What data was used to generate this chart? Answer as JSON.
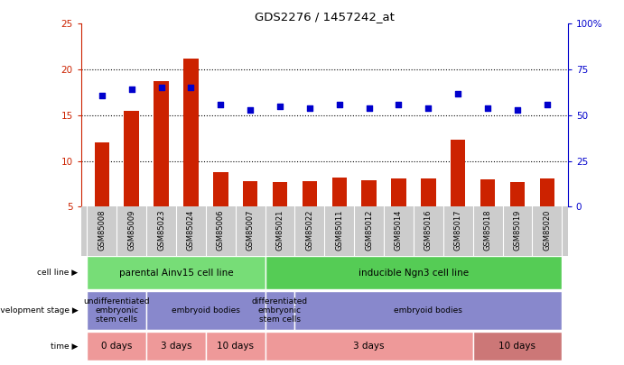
{
  "title": "GDS2276 / 1457242_at",
  "samples": [
    "GSM85008",
    "GSM85009",
    "GSM85023",
    "GSM85024",
    "GSM85006",
    "GSM85007",
    "GSM85021",
    "GSM85022",
    "GSM85011",
    "GSM85012",
    "GSM85014",
    "GSM85016",
    "GSM85017",
    "GSM85018",
    "GSM85019",
    "GSM85020"
  ],
  "counts": [
    12.0,
    15.5,
    18.7,
    21.2,
    8.8,
    7.8,
    7.7,
    7.8,
    8.2,
    7.9,
    8.1,
    8.1,
    12.3,
    8.0,
    7.7,
    8.1
  ],
  "percentiles": [
    61,
    64,
    65,
    65,
    56,
    53,
    55,
    54,
    56,
    54,
    56,
    54,
    62,
    54,
    53,
    56
  ],
  "ylim_left": [
    5,
    25
  ],
  "ylim_right": [
    0,
    100
  ],
  "yticks_left": [
    5,
    10,
    15,
    20,
    25
  ],
  "yticks_right": [
    0,
    25,
    50,
    75,
    100
  ],
  "bar_color": "#cc2200",
  "dot_color": "#0000cc",
  "grid_dotted_at": [
    10,
    15,
    20
  ],
  "xtick_bg": "#cccccc",
  "cell_line_color": "#77dd77",
  "dev_stage_color": "#8888cc",
  "time_color_light": "#ee9999",
  "time_color_dark": "#cc7777"
}
